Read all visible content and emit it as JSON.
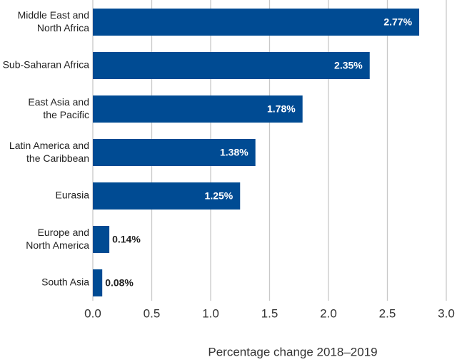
{
  "chart_data": {
    "type": "hbar",
    "x_label": "Percentage change 2018–2019",
    "categories": [
      "Middle East and\nNorth Africa",
      "Sub-Saharan Africa",
      "East Asia and\nthe Pacific",
      "Latin America and\nthe Caribbean",
      "Eurasia",
      "Europe and\nNorth America",
      "South Asia"
    ],
    "values": [
      2.77,
      2.35,
      1.78,
      1.38,
      1.25,
      0.14,
      0.08
    ],
    "value_labels": [
      "2.77%",
      "2.35%",
      "1.78%",
      "1.38%",
      "1.25%",
      "0.14%",
      "0.08%"
    ],
    "color": "#004b93",
    "xlim": [
      0,
      3
    ],
    "xticks": [
      {
        "value": 0,
        "label": "0.0"
      },
      0.5,
      {
        "value": 1,
        "label": "1.0"
      },
      1.5,
      {
        "value": 2,
        "label": "2.0"
      },
      2.5,
      {
        "value": 3,
        "label": "3.0"
      }
    ],
    "grid": true
  }
}
